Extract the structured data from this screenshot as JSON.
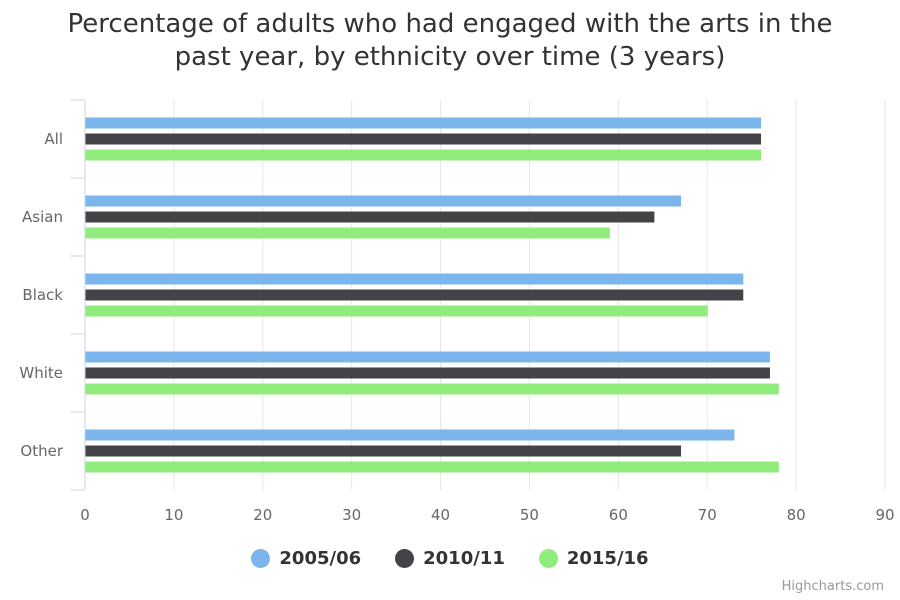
{
  "chart_data": {
    "type": "bar",
    "orientation": "horizontal",
    "title_lines": [
      "Percentage of adults who had engaged with the arts in the",
      "past year, by ethnicity over time (3 years)"
    ],
    "categories": [
      "All",
      "Asian",
      "Black",
      "White",
      "Other"
    ],
    "series": [
      {
        "name": "2005/06",
        "color": "#7cb5ec",
        "values": [
          76,
          67,
          74,
          77,
          73
        ]
      },
      {
        "name": "2010/11",
        "color": "#434348",
        "values": [
          76,
          64,
          74,
          77,
          67
        ]
      },
      {
        "name": "2015/16",
        "color": "#90ed7d",
        "values": [
          76,
          59,
          70,
          78,
          78
        ]
      }
    ],
    "xlim": [
      0,
      90
    ],
    "ticks": [
      "0",
      "10",
      "20",
      "30",
      "40",
      "50",
      "60",
      "70",
      "80",
      "90"
    ],
    "grid": true,
    "legend_position": "bottom-center"
  },
  "credits": "Highcharts.com"
}
